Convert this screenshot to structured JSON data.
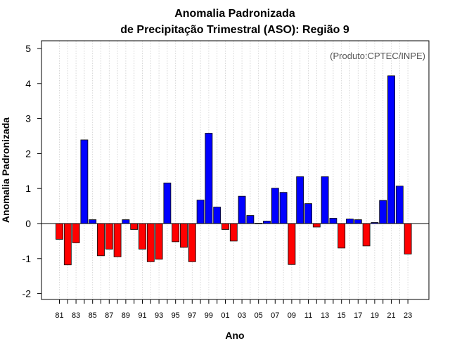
{
  "chart_data": {
    "type": "bar",
    "title_line1": "Anomalia Padronizada",
    "title_line2": "de Precipitação Trimestral (ASO): Região 9",
    "credit": "(Produto:CPTEC/INPE)",
    "xlabel": "Ano",
    "ylabel": "Anomalia Padronizada",
    "ylim": [
      -2.2,
      5.2
    ],
    "yticks": [
      -2,
      -1,
      0,
      1,
      2,
      3,
      4,
      5
    ],
    "grid": "vertical-dotted",
    "categories": [
      "81",
      "82",
      "83",
      "84",
      "85",
      "86",
      "87",
      "88",
      "89",
      "90",
      "91",
      "92",
      "93",
      "94",
      "95",
      "96",
      "97",
      "98",
      "99",
      "00",
      "01",
      "02",
      "03",
      "04",
      "05",
      "06",
      "07",
      "08",
      "09",
      "10",
      "11",
      "12",
      "13",
      "14",
      "15",
      "16",
      "17",
      "18",
      "19",
      "20",
      "21",
      "22",
      "23"
    ],
    "tick_labels": [
      "81",
      "83",
      "85",
      "87",
      "89",
      "91",
      "93",
      "95",
      "97",
      "99",
      "01",
      "03",
      "05",
      "07",
      "09",
      "11",
      "13",
      "15",
      "17",
      "19",
      "21",
      "23"
    ],
    "values": [
      -0.45,
      -1.18,
      -0.55,
      2.39,
      0.11,
      -0.92,
      -0.73,
      -0.95,
      0.11,
      -0.17,
      -0.73,
      -1.09,
      -1.02,
      1.16,
      -0.52,
      -0.68,
      -1.09,
      0.67,
      2.58,
      0.47,
      -0.17,
      -0.5,
      0.78,
      0.23,
      0.01,
      0.07,
      1.01,
      0.89,
      -1.17,
      1.34,
      0.57,
      -0.1,
      1.34,
      0.15,
      -0.7,
      0.13,
      0.11,
      -0.64,
      0.03,
      0.66,
      4.22,
      1.07,
      -0.87
    ],
    "colors": {
      "positive": "#0000ff",
      "negative": "#ff0000"
    }
  }
}
